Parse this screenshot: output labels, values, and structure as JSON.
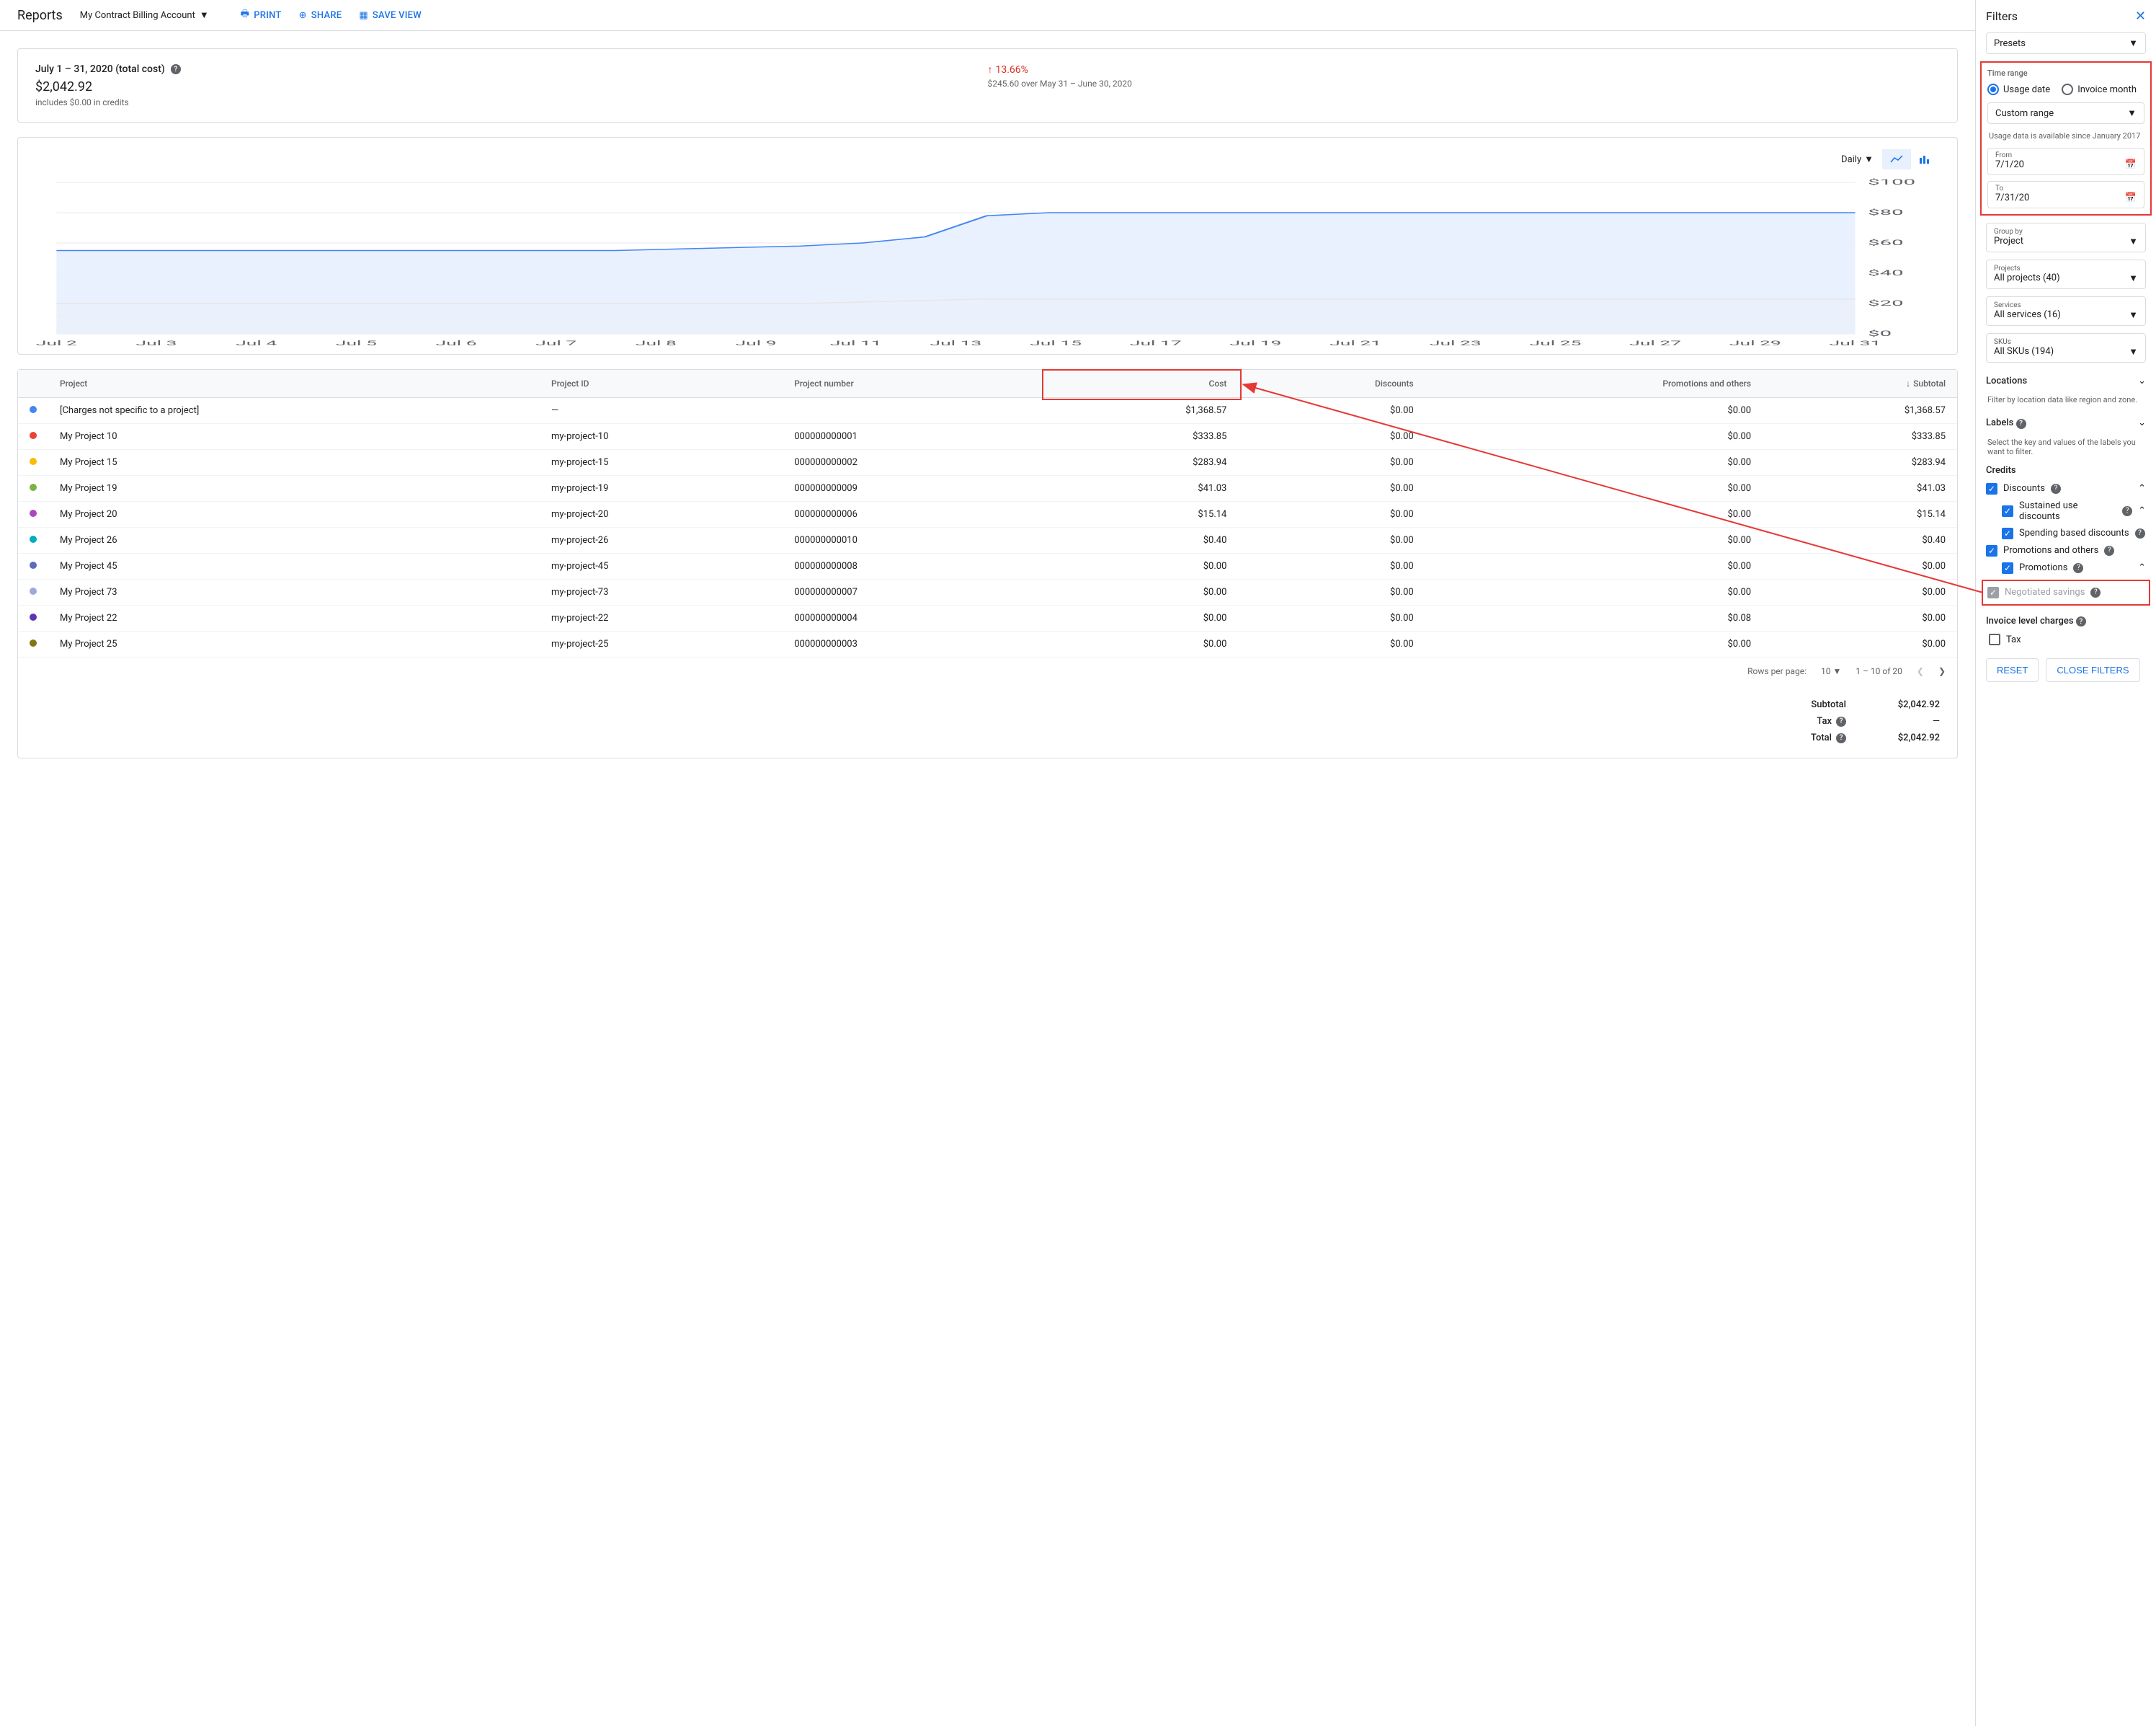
{
  "header": {
    "title": "Reports",
    "account": "My Contract Billing Account",
    "print": "PRINT",
    "share": "SHARE",
    "save_view": "SAVE VIEW"
  },
  "summary": {
    "date_range": "July 1 – 31, 2020 (total cost)",
    "total": "$2,042.92",
    "credits_note": "includes $0.00 in credits",
    "trend_pct": "13.66%",
    "trend_note": "$245.60 over May 31 – June 30, 2020"
  },
  "chart": {
    "interval": "Daily",
    "ymax": 100,
    "ytick_step": 20,
    "y_prefix": "$",
    "x_labels": [
      "Jul 2",
      "Jul 3",
      "Jul 4",
      "Jul 5",
      "Jul 6",
      "Jul 7",
      "Jul 8",
      "Jul 9",
      "Jul 11",
      "Jul 13",
      "Jul 15",
      "Jul 17",
      "Jul 19",
      "Jul 21",
      "Jul 23",
      "Jul 25",
      "Jul 27",
      "Jul 29",
      "Jul 31"
    ],
    "series": [
      {
        "color": "#4285f4",
        "fill": "#e8f0fe",
        "values": [
          55,
          55,
          55,
          55,
          55,
          55,
          55,
          55,
          55,
          55,
          56,
          57,
          58,
          60,
          64,
          78,
          80,
          80,
          80,
          80,
          80,
          80,
          80,
          80,
          80,
          80,
          80,
          80,
          80,
          80
        ]
      },
      {
        "color": "#ea8600",
        "fill": "#fef7e0",
        "values": [
          20,
          20,
          20,
          20,
          20,
          20,
          20,
          20,
          20,
          20,
          20,
          20,
          20,
          21,
          22,
          23,
          23,
          23,
          23,
          23,
          23,
          23,
          23,
          23,
          23,
          23,
          23,
          23,
          23,
          23
        ]
      },
      {
        "color": "#fbbc04",
        "fill": "#fef9ed",
        "values": [
          12,
          12,
          12,
          12,
          12,
          12,
          12,
          12,
          12,
          12,
          12,
          12,
          12,
          12,
          12,
          12,
          12,
          12,
          12,
          12,
          12,
          12,
          12,
          12,
          12,
          12,
          12,
          12,
          12,
          12
        ]
      },
      {
        "color": "#34a853",
        "fill": "#e6f4ea",
        "values": [
          3,
          3,
          3,
          3,
          3,
          3,
          3,
          3,
          3,
          3,
          3,
          3,
          3,
          3,
          3,
          3,
          3,
          3,
          3,
          3,
          3,
          3,
          3,
          3,
          3,
          3,
          3,
          3,
          3,
          3
        ]
      }
    ]
  },
  "table": {
    "columns": [
      "Project",
      "Project ID",
      "Project number",
      "Cost",
      "Discounts",
      "Promotions and others",
      "Subtotal"
    ],
    "sort_col": 6,
    "rows": [
      {
        "color": "#4285f4",
        "project": "[Charges not specific to a project]",
        "id": "—",
        "num": "",
        "cost": "$1,368.57",
        "discounts": "$0.00",
        "promo": "$0.00",
        "subtotal": "$1,368.57"
      },
      {
        "color": "#ea4335",
        "project": "My Project 10",
        "id": "my-project-10",
        "num": "000000000001",
        "cost": "$333.85",
        "discounts": "$0.00",
        "promo": "$0.00",
        "subtotal": "$333.85"
      },
      {
        "color": "#fbbc04",
        "project": "My Project 15",
        "id": "my-project-15",
        "num": "000000000002",
        "cost": "$283.94",
        "discounts": "$0.00",
        "promo": "$0.00",
        "subtotal": "$283.94"
      },
      {
        "color": "#7cb342",
        "project": "My Project 19",
        "id": "my-project-19",
        "num": "000000000009",
        "cost": "$41.03",
        "discounts": "$0.00",
        "promo": "$0.00",
        "subtotal": "$41.03"
      },
      {
        "color": "#ab47bc",
        "project": "My Project 20",
        "id": "my-project-20",
        "num": "000000000006",
        "cost": "$15.14",
        "discounts": "$0.00",
        "promo": "$0.00",
        "subtotal": "$15.14"
      },
      {
        "color": "#00acc1",
        "project": "My Project 26",
        "id": "my-project-26",
        "num": "000000000010",
        "cost": "$0.40",
        "discounts": "$0.00",
        "promo": "$0.00",
        "subtotal": "$0.40"
      },
      {
        "color": "#5c6bc0",
        "project": "My Project 45",
        "id": "my-project-45",
        "num": "000000000008",
        "cost": "$0.00",
        "discounts": "$0.00",
        "promo": "$0.00",
        "subtotal": "$0.00"
      },
      {
        "color": "#9fa8da",
        "project": "My Project 73",
        "id": "my-project-73",
        "num": "000000000007",
        "cost": "$0.00",
        "discounts": "$0.00",
        "promo": "$0.00",
        "subtotal": "$0.00"
      },
      {
        "color": "#5e35b1",
        "project": "My Project 22",
        "id": "my-project-22",
        "num": "000000000004",
        "cost": "$0.00",
        "discounts": "$0.00",
        "promo": "$0.08",
        "subtotal": "$0.00"
      },
      {
        "color": "#827717",
        "project": "My Project 25",
        "id": "my-project-25",
        "num": "000000000003",
        "cost": "$0.00",
        "discounts": "$0.00",
        "promo": "$0.00",
        "subtotal": "$0.00"
      }
    ],
    "rows_per_page_label": "Rows per page:",
    "rows_per_page": "10",
    "page_info": "1 – 10 of 20"
  },
  "totals": {
    "subtotal_label": "Subtotal",
    "subtotal": "$2,042.92",
    "tax_label": "Tax",
    "tax": "—",
    "total_label": "Total",
    "total": "$2,042.92"
  },
  "filters": {
    "title": "Filters",
    "presets": "Presets",
    "time_range_label": "Time range",
    "usage_date": "Usage date",
    "invoice_month": "Invoice month",
    "custom_range": "Custom range",
    "usage_hint": "Usage data is available since January 2017",
    "from_label": "From",
    "from_val": "7/1/20",
    "to_label": "To",
    "to_val": "7/31/20",
    "group_by_label": "Group by",
    "group_by_val": "Project",
    "projects_label": "Projects",
    "projects_val": "All projects (40)",
    "services_label": "Services",
    "services_val": "All services (16)",
    "skus_label": "SKUs",
    "skus_val": "All SKUs (194)",
    "locations_label": "Locations",
    "locations_hint": "Filter by location data like region and zone.",
    "labels_label": "Labels",
    "labels_hint": "Select the key and values of the labels you want to filter.",
    "credits_label": "Credits",
    "discounts": "Discounts",
    "sustained": "Sustained use discounts",
    "spending": "Spending based discounts",
    "promo_others": "Promotions and others",
    "promotions": "Promotions",
    "negotiated": "Negotiated savings",
    "invoice_charges": "Invoice level charges",
    "tax_cb": "Tax",
    "reset": "RESET",
    "close": "CLOSE FILTERS"
  },
  "annotations": {
    "highlight_color": "#e53935"
  }
}
